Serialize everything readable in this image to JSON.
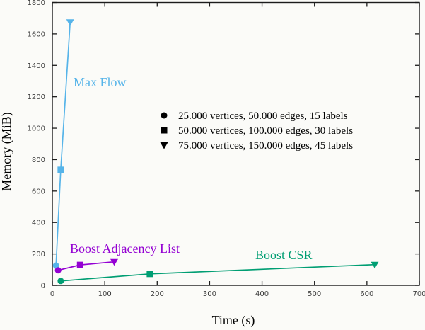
{
  "chart_data": {
    "type": "line",
    "title": "",
    "xlabel": "Time (s)",
    "ylabel": "Memory (MiB)",
    "xlim": [
      0,
      700
    ],
    "ylim": [
      0,
      1800
    ],
    "x_ticks": [
      0,
      100,
      200,
      300,
      400,
      500,
      600,
      700
    ],
    "y_ticks": [
      0,
      200,
      400,
      600,
      800,
      1000,
      1200,
      1400,
      1600,
      1800
    ],
    "grid": false,
    "background_color": "#fbfbf8",
    "border_color": "#1c1c1c",
    "marker_semantics": "marker shape encodes problem size; circle=smallest, square=medium, triangle=largest",
    "series": [
      {
        "name": "Max Flow",
        "color": "#56b4e9",
        "points": [
          {
            "marker": "circle",
            "x": 7,
            "y": 126
          },
          {
            "marker": "square",
            "x": 16,
            "y": 735
          },
          {
            "marker": "triangle-down",
            "x": 34,
            "y": 1675
          }
        ]
      },
      {
        "name": "Boost Adjacency List",
        "color": "#9400d3",
        "points": [
          {
            "marker": "circle",
            "x": 11,
            "y": 96
          },
          {
            "marker": "square",
            "x": 53,
            "y": 130
          },
          {
            "marker": "triangle-down",
            "x": 118,
            "y": 150
          }
        ]
      },
      {
        "name": "Boost CSR",
        "color": "#009e73",
        "points": [
          {
            "marker": "circle",
            "x": 16,
            "y": 28
          },
          {
            "marker": "square",
            "x": 186,
            "y": 73
          },
          {
            "marker": "triangle-down",
            "x": 615,
            "y": 132
          }
        ]
      }
    ],
    "legend": {
      "position": "inside-upper-middle-right",
      "marker_color": "#000000",
      "entries": [
        {
          "marker": "circle",
          "label": "25.000 vertices, 50.000 edges, 15 labels"
        },
        {
          "marker": "square",
          "label": "50.000 vertices, 100.000 edges, 30 labels"
        },
        {
          "marker": "triangle-down",
          "label": "75.000 vertices, 150.000 edges, 45 labels"
        }
      ]
    }
  }
}
